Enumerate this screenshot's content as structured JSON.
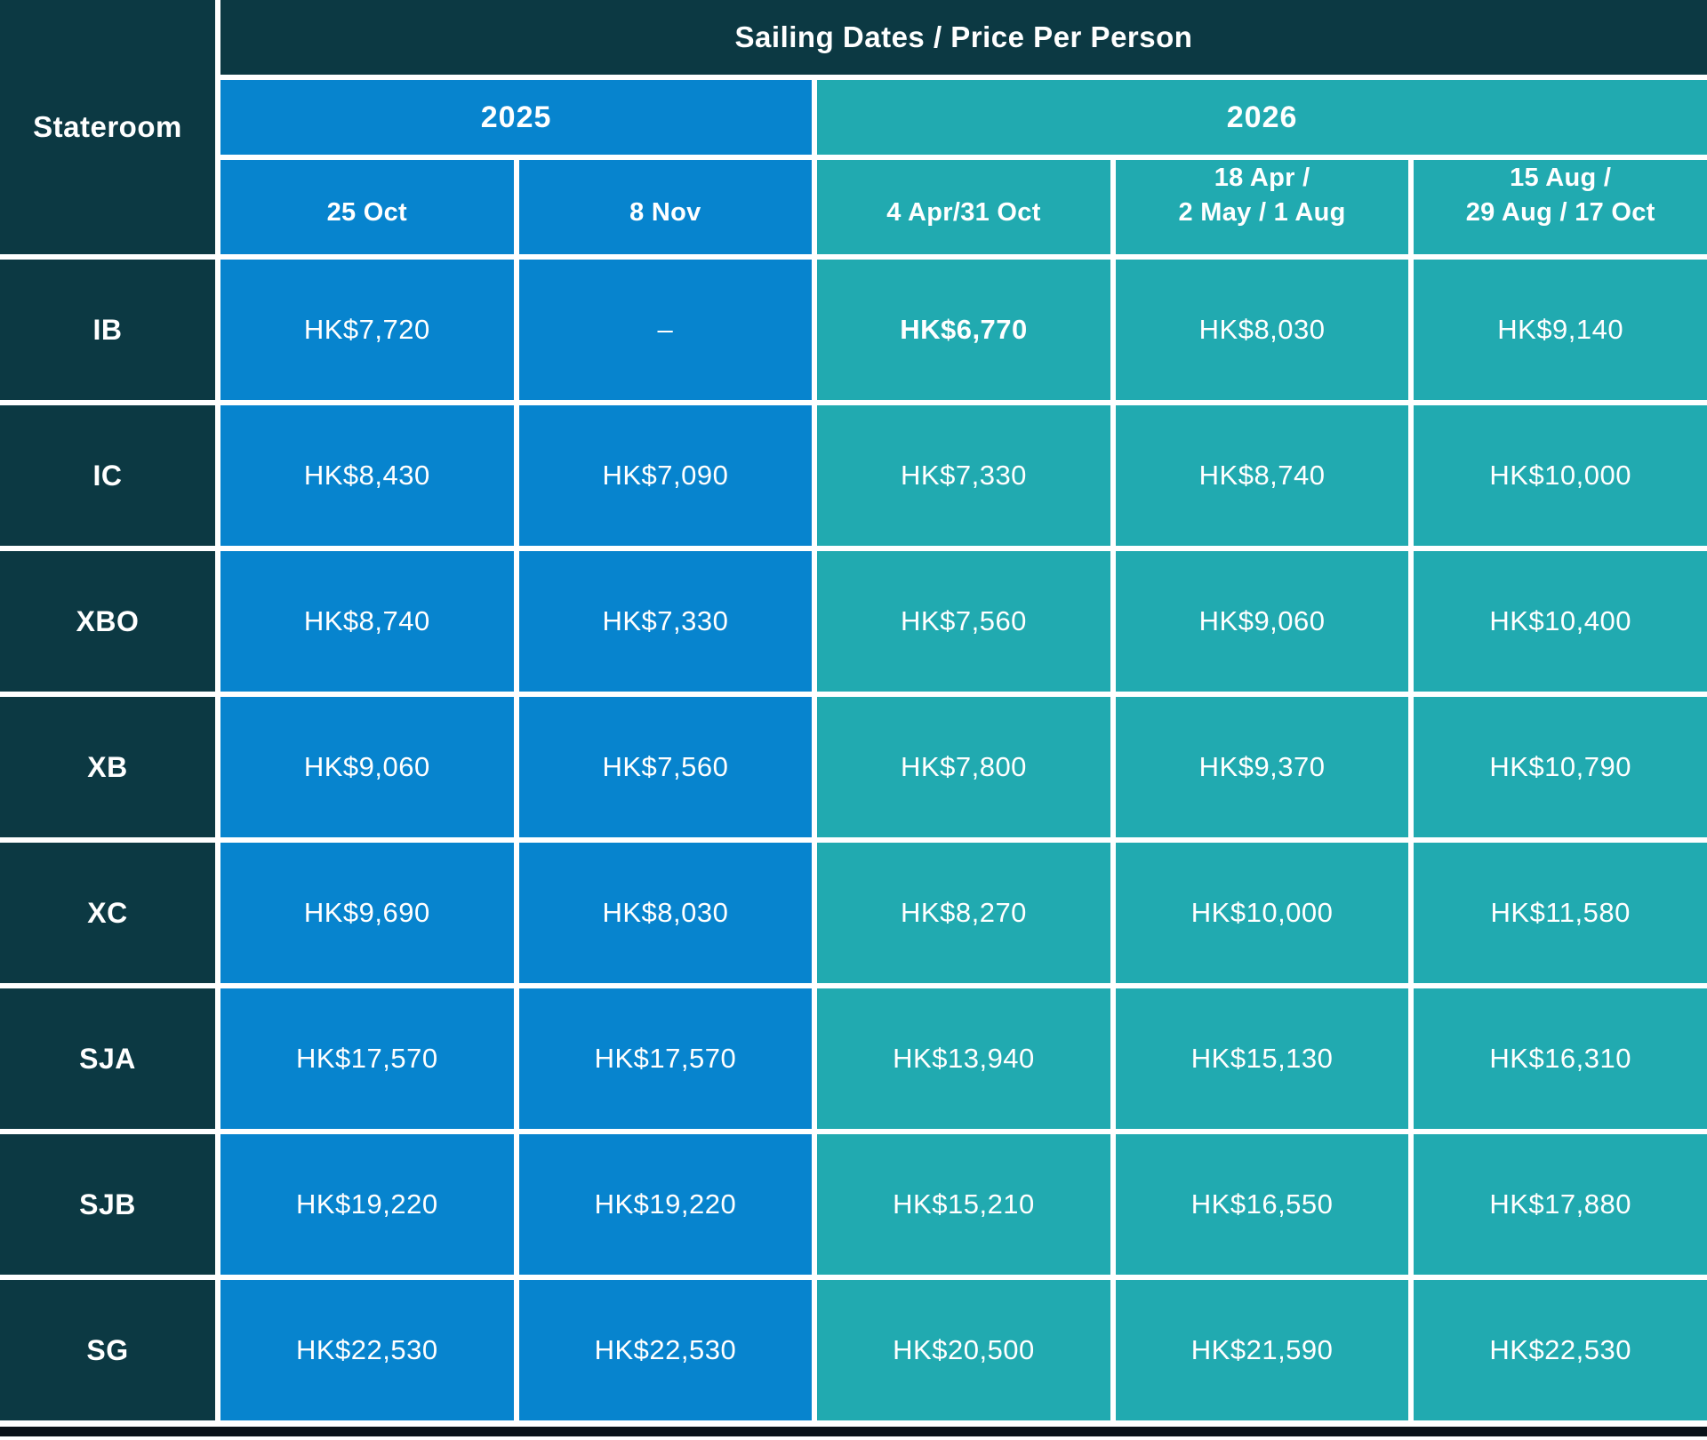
{
  "colors": {
    "dark_header": "#0c3943",
    "blue_2025": "#0784ce",
    "teal_2026": "#21aab0",
    "grid_lines": "#ffffff",
    "bottom_bar": "#0a1118",
    "text": "#ffffff"
  },
  "chart_data": {
    "type": "table",
    "title": "Sailing Dates / Price Per Person",
    "row_axis_label": "Stateroom",
    "currency": "HKD",
    "year_groups": [
      {
        "label": "2025",
        "span": 2
      },
      {
        "label": "2026",
        "span": 3
      }
    ],
    "date_headers": [
      {
        "year": "2025",
        "line1": "25 Oct",
        "line2": ""
      },
      {
        "year": "2025",
        "line1": "8 Nov",
        "line2": ""
      },
      {
        "year": "2026",
        "line1": "4 Apr/31 Oct",
        "line2": ""
      },
      {
        "year": "2026",
        "line1": "18 Apr /",
        "line2": "2 May / 1 Aug"
      },
      {
        "year": "2026",
        "line1": "15 Aug /",
        "line2": "29 Aug / 17 Oct"
      }
    ],
    "rows": [
      {
        "stateroom": "IB",
        "prices": [
          "HK$7,720",
          "–",
          "HK$6,770",
          "HK$8,030",
          "HK$9,140"
        ],
        "highlight_index": 2
      },
      {
        "stateroom": "IC",
        "prices": [
          "HK$8,430",
          "HK$7,090",
          "HK$7,330",
          "HK$8,740",
          "HK$10,000"
        ]
      },
      {
        "stateroom": "XBO",
        "prices": [
          "HK$8,740",
          "HK$7,330",
          "HK$7,560",
          "HK$9,060",
          "HK$10,400"
        ]
      },
      {
        "stateroom": "XB",
        "prices": [
          "HK$9,060",
          "HK$7,560",
          "HK$7,800",
          "HK$9,370",
          "HK$10,790"
        ]
      },
      {
        "stateroom": "XC",
        "prices": [
          "HK$9,690",
          "HK$8,030",
          "HK$8,270",
          "HK$10,000",
          "HK$11,580"
        ]
      },
      {
        "stateroom": "SJA",
        "prices": [
          "HK$17,570",
          "HK$17,570",
          "HK$13,940",
          "HK$15,130",
          "HK$16,310"
        ]
      },
      {
        "stateroom": "SJB",
        "prices": [
          "HK$19,220",
          "HK$19,220",
          "HK$15,210",
          "HK$16,550",
          "HK$17,880"
        ]
      },
      {
        "stateroom": "SG",
        "prices": [
          "HK$22,530",
          "HK$22,530",
          "HK$20,500",
          "HK$21,590",
          "HK$22,530"
        ]
      }
    ]
  }
}
